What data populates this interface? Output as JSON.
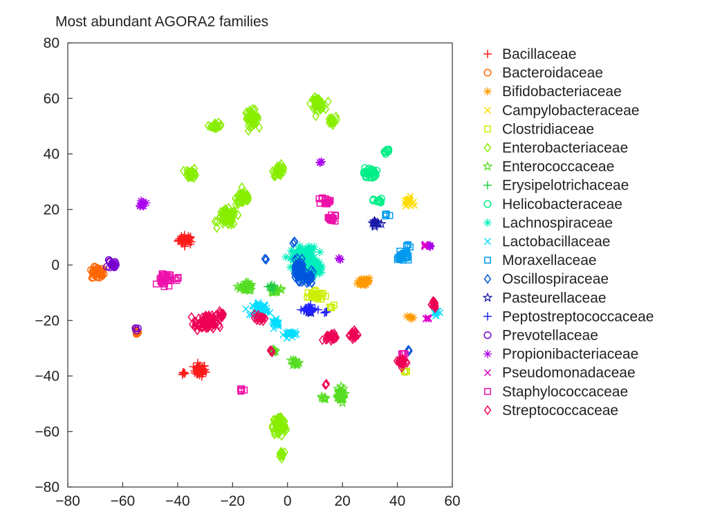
{
  "chart_data": {
    "type": "scatter",
    "title": "Most abundant AGORA2 families",
    "xlabel": "",
    "ylabel": "",
    "xlim": [
      -80,
      60
    ],
    "ylim": [
      -80,
      80
    ],
    "x_ticks": [
      "−80",
      "−60",
      "−40",
      "−20",
      "0",
      "20",
      "40",
      "60"
    ],
    "y_ticks": [
      "80",
      "60",
      "40",
      "20",
      "0",
      "−20",
      "−40",
      "−60",
      "−80"
    ],
    "legend_position": "right",
    "series": [
      {
        "name": "Bacillaceae",
        "color": "#ff1a1a",
        "marker": "plus",
        "clusters": [
          [
            -37,
            9,
            2.5,
            1.6
          ],
          [
            -32,
            -38,
            2.0,
            2.0
          ],
          [
            -38,
            -39,
            1.0,
            0.8
          ]
        ]
      },
      {
        "name": "Bacteroidaceae",
        "color": "#ff6600",
        "marker": "circle",
        "clusters": [
          [
            -69,
            -3,
            2.0,
            2.0
          ],
          [
            -55,
            -24,
            1.0,
            0.9
          ]
        ]
      },
      {
        "name": "Bifidobacteriaceae",
        "color": "#ff9900",
        "marker": "asterisk",
        "clusters": [
          [
            28,
            -6,
            2.2,
            1.5
          ],
          [
            45,
            -19,
            0.8,
            0.8
          ]
        ]
      },
      {
        "name": "Campylobacteraceae",
        "color": "#ffdd00",
        "marker": "x",
        "clusters": [
          [
            44,
            23,
            1.5,
            1.4
          ]
        ]
      },
      {
        "name": "Clostridiaceae",
        "color": "#ccee00",
        "marker": "square",
        "clusters": [
          [
            10,
            -11,
            2.5,
            1.5
          ],
          [
            16,
            -15,
            0.8,
            0.6
          ],
          [
            43,
            -38,
            0.6,
            0.5
          ]
        ]
      },
      {
        "name": "Enterobacteriaceae",
        "color": "#88ee00",
        "marker": "diamond",
        "clusters": [
          [
            -26,
            50,
            1.8,
            1.0
          ],
          [
            -13,
            53,
            2.2,
            2.5
          ],
          [
            -16,
            24,
            2.6,
            2.2
          ],
          [
            -22,
            17,
            3.0,
            2.6
          ],
          [
            -35,
            33,
            1.8,
            1.6
          ],
          [
            -3,
            34,
            2.0,
            1.8
          ],
          [
            11,
            58,
            2.2,
            2.0
          ],
          [
            16,
            52,
            1.5,
            1.3
          ],
          [
            -3,
            -58,
            2.2,
            3.5
          ],
          [
            -2,
            -68,
            1.2,
            1.1
          ]
        ]
      },
      {
        "name": "Enterococcaceae",
        "color": "#55dd22",
        "marker": "star",
        "clusters": [
          [
            -15,
            -8,
            2.0,
            1.6
          ],
          [
            -4,
            -9,
            1.3,
            1.0
          ],
          [
            3,
            -35,
            1.2,
            1.0
          ],
          [
            -5,
            -31,
            0.8,
            0.7
          ],
          [
            19,
            -47,
            1.5,
            2.5
          ],
          [
            13,
            -48,
            0.8,
            0.7
          ]
        ]
      },
      {
        "name": "Erysipelotrichaceae",
        "color": "#22cc44",
        "marker": "plus",
        "clusters": [
          [
            -6,
            -8,
            1.2,
            1.0
          ]
        ]
      },
      {
        "name": "Helicobacteraceae",
        "color": "#00ee88",
        "marker": "circle",
        "clusters": [
          [
            30,
            33,
            2.0,
            1.8
          ],
          [
            36,
            41,
            1.0,
            0.8
          ],
          [
            33,
            23,
            1.5,
            0.8
          ]
        ]
      },
      {
        "name": "Lachnospiraceae",
        "color": "#00eebb",
        "marker": "asterisk",
        "clusters": [
          [
            6,
            2,
            4.0,
            4.0
          ],
          [
            10,
            -1,
            2.5,
            2.5
          ]
        ]
      },
      {
        "name": "Lactobacillaceae",
        "color": "#00ddff",
        "marker": "x",
        "clusters": [
          [
            -10,
            -16,
            2.5,
            2.0
          ],
          [
            -4,
            -21,
            1.5,
            1.2
          ],
          [
            1,
            -25,
            2.0,
            1.2
          ],
          [
            54,
            -17,
            1.0,
            1.0
          ]
        ]
      },
      {
        "name": "Moraxellaceae",
        "color": "#0099ee",
        "marker": "square",
        "clusters": [
          [
            42,
            3,
            1.8,
            1.6
          ],
          [
            44,
            7,
            0.8,
            0.6
          ],
          [
            36,
            18,
            0.8,
            0.5
          ]
        ]
      },
      {
        "name": "Oscillospiraceae",
        "color": "#0055dd",
        "marker": "diamond",
        "clusters": [
          [
            4,
            -2,
            2.0,
            3.0
          ],
          [
            8,
            -5,
            1.5,
            2.0
          ],
          [
            44,
            -31,
            0.6,
            0.6
          ],
          [
            -8,
            2,
            0.6,
            0.5
          ],
          [
            2,
            8,
            0.6,
            0.5
          ]
        ]
      },
      {
        "name": "Pasteurellaceae",
        "color": "#1a1aaa",
        "marker": "star",
        "clusters": [
          [
            32,
            15,
            1.3,
            1.0
          ],
          [
            8,
            -17,
            0.6,
            0.6
          ]
        ]
      },
      {
        "name": "Peptostreptococcaceae",
        "color": "#2222ff",
        "marker": "plus",
        "clusters": [
          [
            8,
            -16,
            2.5,
            1.2
          ],
          [
            14,
            -17,
            0.8,
            0.5
          ]
        ]
      },
      {
        "name": "Prevotellaceae",
        "color": "#7700cc",
        "marker": "circle",
        "clusters": [
          [
            -64,
            0,
            1.3,
            1.3
          ],
          [
            -55,
            -23,
            0.5,
            0.5
          ]
        ]
      },
      {
        "name": "Propionibacteriaceae",
        "color": "#aa00ee",
        "marker": "asterisk",
        "clusters": [
          [
            -53,
            22,
            1.3,
            0.8
          ],
          [
            12,
            37,
            0.5,
            0.5
          ],
          [
            19,
            2,
            0.5,
            0.5
          ],
          [
            52,
            7,
            0.8,
            0.7
          ]
        ]
      },
      {
        "name": "Pseudomonadaceae",
        "color": "#dd00cc",
        "marker": "x",
        "clusters": [
          [
            50,
            7,
            0.8,
            0.6
          ],
          [
            51,
            -19,
            0.8,
            0.6
          ]
        ]
      },
      {
        "name": "Staphylococcaceae",
        "color": "#ee11aa",
        "marker": "square",
        "clusters": [
          [
            14,
            23,
            1.5,
            1.2
          ],
          [
            16,
            17,
            1.3,
            1.2
          ],
          [
            -45,
            -5,
            2.0,
            2.2
          ],
          [
            -40,
            -5,
            0.7,
            0.6
          ],
          [
            -17,
            -45,
            0.8,
            0.6
          ],
          [
            42,
            -32,
            0.8,
            0.6
          ]
        ]
      },
      {
        "name": "Streptococcaceae",
        "color": "#ee0055",
        "marker": "diamond",
        "clusters": [
          [
            -30,
            -21,
            3.5,
            2.5
          ],
          [
            -24,
            -18,
            1.5,
            1.2
          ],
          [
            -10,
            -19,
            1.5,
            1.2
          ],
          [
            16,
            -26,
            1.8,
            1.3
          ],
          [
            24,
            -25,
            1.5,
            1.3
          ],
          [
            42,
            -35,
            1.5,
            1.5
          ],
          [
            53,
            -14,
            1.2,
            1.5
          ],
          [
            14,
            -43,
            0.5,
            0.5
          ],
          [
            -6,
            -31,
            0.5,
            0.5
          ]
        ]
      }
    ]
  }
}
